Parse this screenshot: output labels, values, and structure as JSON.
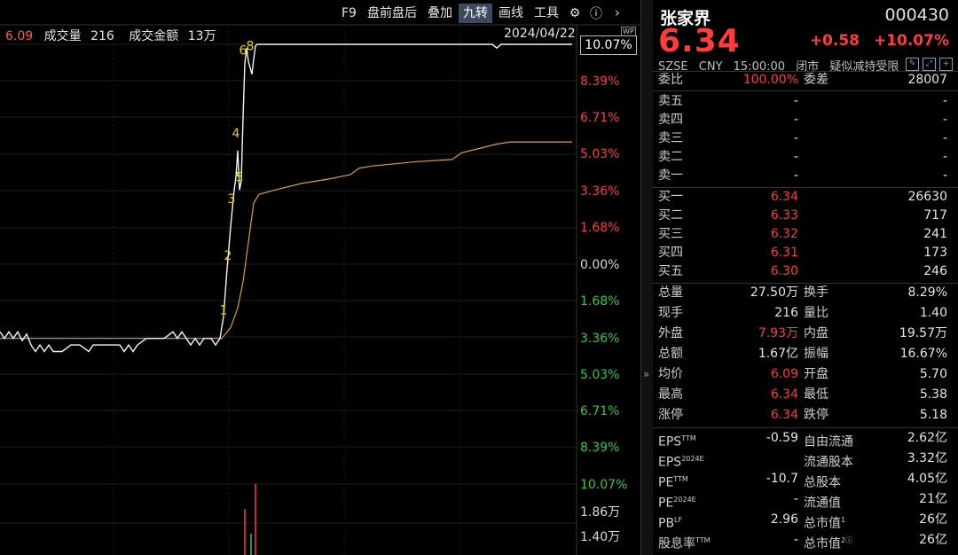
{
  "toolbar": {
    "items": [
      "F9",
      "盘前盘后",
      "叠加",
      "九转",
      "画线",
      "工具"
    ],
    "active_index": 3
  },
  "info": {
    "avg_price": "6.09",
    "vol_label": "成交量",
    "vol_value": "216",
    "amount_label": "成交金额",
    "amount_value": "13万",
    "date": "2024/04/22",
    "wp_badge": "WP"
  },
  "axis": {
    "current_pct": "10.07%",
    "labels": [
      {
        "text": "8.39%",
        "color": "#ff3b3b"
      },
      {
        "text": "6.71%",
        "color": "#ff3b3b"
      },
      {
        "text": "5.03%",
        "color": "#ff3b3b"
      },
      {
        "text": "3.36%",
        "color": "#ff3b3b"
      },
      {
        "text": "1.68%",
        "color": "#ff3b3b"
      },
      {
        "text": "0.00%",
        "color": "#d9d9d9"
      },
      {
        "text": "1.68%",
        "color": "#2ecc40"
      },
      {
        "text": "3.36%",
        "color": "#2ecc40"
      },
      {
        "text": "5.03%",
        "color": "#2ecc40"
      },
      {
        "text": "6.71%",
        "color": "#2ecc40"
      },
      {
        "text": "8.39%",
        "color": "#2ecc40"
      },
      {
        "text": "10.07%",
        "color": "#2ecc40"
      }
    ],
    "volume_labels": [
      "1.86万",
      "1.40万"
    ]
  },
  "chart_data": {
    "type": "line",
    "price_series": [
      [
        0,
        -3.1
      ],
      [
        5,
        -3.4
      ],
      [
        10,
        -3.1
      ],
      [
        15,
        -3.4
      ],
      [
        20,
        -3.1
      ],
      [
        25,
        -3.5
      ],
      [
        30,
        -3.2
      ],
      [
        35,
        -3.7
      ],
      [
        40,
        -4.0
      ],
      [
        45,
        -3.7
      ],
      [
        50,
        -4.0
      ],
      [
        55,
        -3.7
      ],
      [
        60,
        -4.0
      ],
      [
        70,
        -4.0
      ],
      [
        80,
        -3.7
      ],
      [
        90,
        -3.7
      ],
      [
        100,
        -4.0
      ],
      [
        105,
        -3.7
      ],
      [
        115,
        -3.7
      ],
      [
        125,
        -3.7
      ],
      [
        135,
        -3.7
      ],
      [
        140,
        -4.0
      ],
      [
        145,
        -3.7
      ],
      [
        150,
        -4.0
      ],
      [
        155,
        -3.7
      ],
      [
        165,
        -3.4
      ],
      [
        175,
        -3.4
      ],
      [
        185,
        -3.4
      ],
      [
        195,
        -3.1
      ],
      [
        200,
        -3.4
      ],
      [
        205,
        -3.1
      ],
      [
        210,
        -3.4
      ],
      [
        215,
        -3.7
      ],
      [
        220,
        -3.4
      ],
      [
        225,
        -3.7
      ],
      [
        230,
        -3.4
      ],
      [
        238,
        -3.4
      ],
      [
        243,
        -3.7
      ],
      [
        248,
        -3.4
      ],
      [
        252,
        -2.4
      ],
      [
        256,
        -0.2
      ],
      [
        260,
        1.7
      ],
      [
        264,
        3.4
      ],
      [
        266,
        4.0
      ],
      [
        268,
        5.2
      ],
      [
        270,
        3.4
      ],
      [
        272,
        3.8
      ],
      [
        274,
        6.7
      ],
      [
        276,
        9.2
      ],
      [
        278,
        9.9
      ],
      [
        280,
        9.3
      ],
      [
        282,
        9.0
      ],
      [
        284,
        8.7
      ],
      [
        286,
        9.4
      ],
      [
        288,
        10.0
      ],
      [
        290,
        10.07
      ],
      [
        555,
        10.07
      ],
      [
        560,
        9.9
      ],
      [
        565,
        10.07
      ],
      [
        645,
        10.07
      ]
    ],
    "avg_series": [
      [
        0,
        -3.4
      ],
      [
        250,
        -3.4
      ],
      [
        260,
        -2.9
      ],
      [
        268,
        -2.0
      ],
      [
        274,
        -0.8
      ],
      [
        280,
        1.0
      ],
      [
        286,
        2.8
      ],
      [
        292,
        3.2
      ],
      [
        310,
        3.4
      ],
      [
        340,
        3.7
      ],
      [
        370,
        3.9
      ],
      [
        395,
        4.1
      ],
      [
        405,
        4.4
      ],
      [
        420,
        4.5
      ],
      [
        470,
        4.7
      ],
      [
        510,
        4.8
      ],
      [
        520,
        5.1
      ],
      [
        540,
        5.3
      ],
      [
        560,
        5.5
      ],
      [
        575,
        5.6
      ],
      [
        645,
        5.6
      ]
    ],
    "nine_turn_labels": [
      {
        "text": "1",
        "x": 252,
        "y": -2.3
      },
      {
        "text": "2",
        "x": 257,
        "y": 0.2
      },
      {
        "text": "3",
        "x": 261,
        "y": 2.8
      },
      {
        "text": "4",
        "x": 266,
        "y": 5.8
      },
      {
        "text": "5",
        "x": 270,
        "y": 3.8
      },
      {
        "text": "6",
        "x": 274,
        "y": 9.6
      },
      {
        "text": "8",
        "x": 282,
        "y": 9.8
      }
    ],
    "volume_bars": [
      {
        "x": 276,
        "v": 0.65,
        "color": "#ff3b3b"
      },
      {
        "x": 283,
        "v": 0.3,
        "color": "#2ecc40"
      },
      {
        "x": 288,
        "v": 1.0,
        "color": "#ff3b3b"
      }
    ]
  },
  "quote": {
    "name": "张家界",
    "code": "000430",
    "price": "6.34",
    "change": "+0.58",
    "change_pct": "+10.07%",
    "meta": [
      "SZSE",
      "CNY",
      "15:00:00",
      "闭市",
      "疑似减持受限"
    ],
    "weibi_label": "委比",
    "weibi": "100.00%",
    "weicha_label": "委差",
    "weicha": "28007",
    "sell": [
      {
        "label": "卖五",
        "price": "-",
        "vol": "-"
      },
      {
        "label": "卖四",
        "price": "-",
        "vol": "-"
      },
      {
        "label": "卖三",
        "price": "-",
        "vol": "-"
      },
      {
        "label": "卖二",
        "price": "-",
        "vol": "-"
      },
      {
        "label": "卖一",
        "price": "-",
        "vol": "-"
      }
    ],
    "buy": [
      {
        "label": "买一",
        "price": "6.34",
        "vol": "26630"
      },
      {
        "label": "买二",
        "price": "6.33",
        "vol": "717"
      },
      {
        "label": "买三",
        "price": "6.32",
        "vol": "241"
      },
      {
        "label": "买四",
        "price": "6.31",
        "vol": "173"
      },
      {
        "label": "买五",
        "price": "6.30",
        "vol": "246"
      }
    ],
    "stats": [
      {
        "l": "总量",
        "m": "27.50万",
        "mc": "white",
        "l2": "换手",
        "r": "8.29%",
        "rc": "white"
      },
      {
        "l": "现手",
        "m": "216",
        "mc": "white",
        "l2": "量比",
        "r": "1.40",
        "rc": "white"
      },
      {
        "l": "外盘",
        "m": "7.93万",
        "mc": "red",
        "l2": "内盘",
        "r": "19.57万",
        "rc": "green"
      },
      {
        "l": "总额",
        "m": "1.67亿",
        "mc": "white",
        "l2": "振幅",
        "r": "16.67%",
        "rc": "white"
      },
      {
        "l": "均价",
        "m": "6.09",
        "mc": "red",
        "l2": "开盘",
        "r": "5.70",
        "rc": "green"
      },
      {
        "l": "最高",
        "m": "6.34",
        "mc": "red",
        "l2": "最低",
        "r": "5.38",
        "rc": "green"
      },
      {
        "l": "涨停",
        "m": "6.34",
        "mc": "red",
        "l2": "跌停",
        "r": "5.18",
        "rc": "green"
      }
    ],
    "fund": [
      {
        "l": "EPS",
        "sup": "TTM",
        "m": "-0.59",
        "l2": "自由流通",
        "sup2": "",
        "r": "2.62亿"
      },
      {
        "l": "EPS",
        "sup": "2024E",
        "m": "",
        "l2": "流通股本",
        "sup2": "",
        "r": "3.32亿"
      },
      {
        "l": "PE",
        "sup": "TTM",
        "m": "-10.7",
        "l2": "总股本",
        "sup2": "",
        "r": "4.05亿"
      },
      {
        "l": "PE",
        "sup": "2024E",
        "m": "-",
        "l2": "流通值",
        "sup2": "",
        "r": "21亿"
      },
      {
        "l": "PB",
        "sup": "LF",
        "m": "2.96",
        "l2": "总市值",
        "sup2": "1",
        "r": "26亿"
      },
      {
        "l": "股息率",
        "sup": "TTM",
        "m": "-",
        "l2": "总市值",
        "sup2": "2ⓘ",
        "r": "26亿"
      }
    ]
  }
}
